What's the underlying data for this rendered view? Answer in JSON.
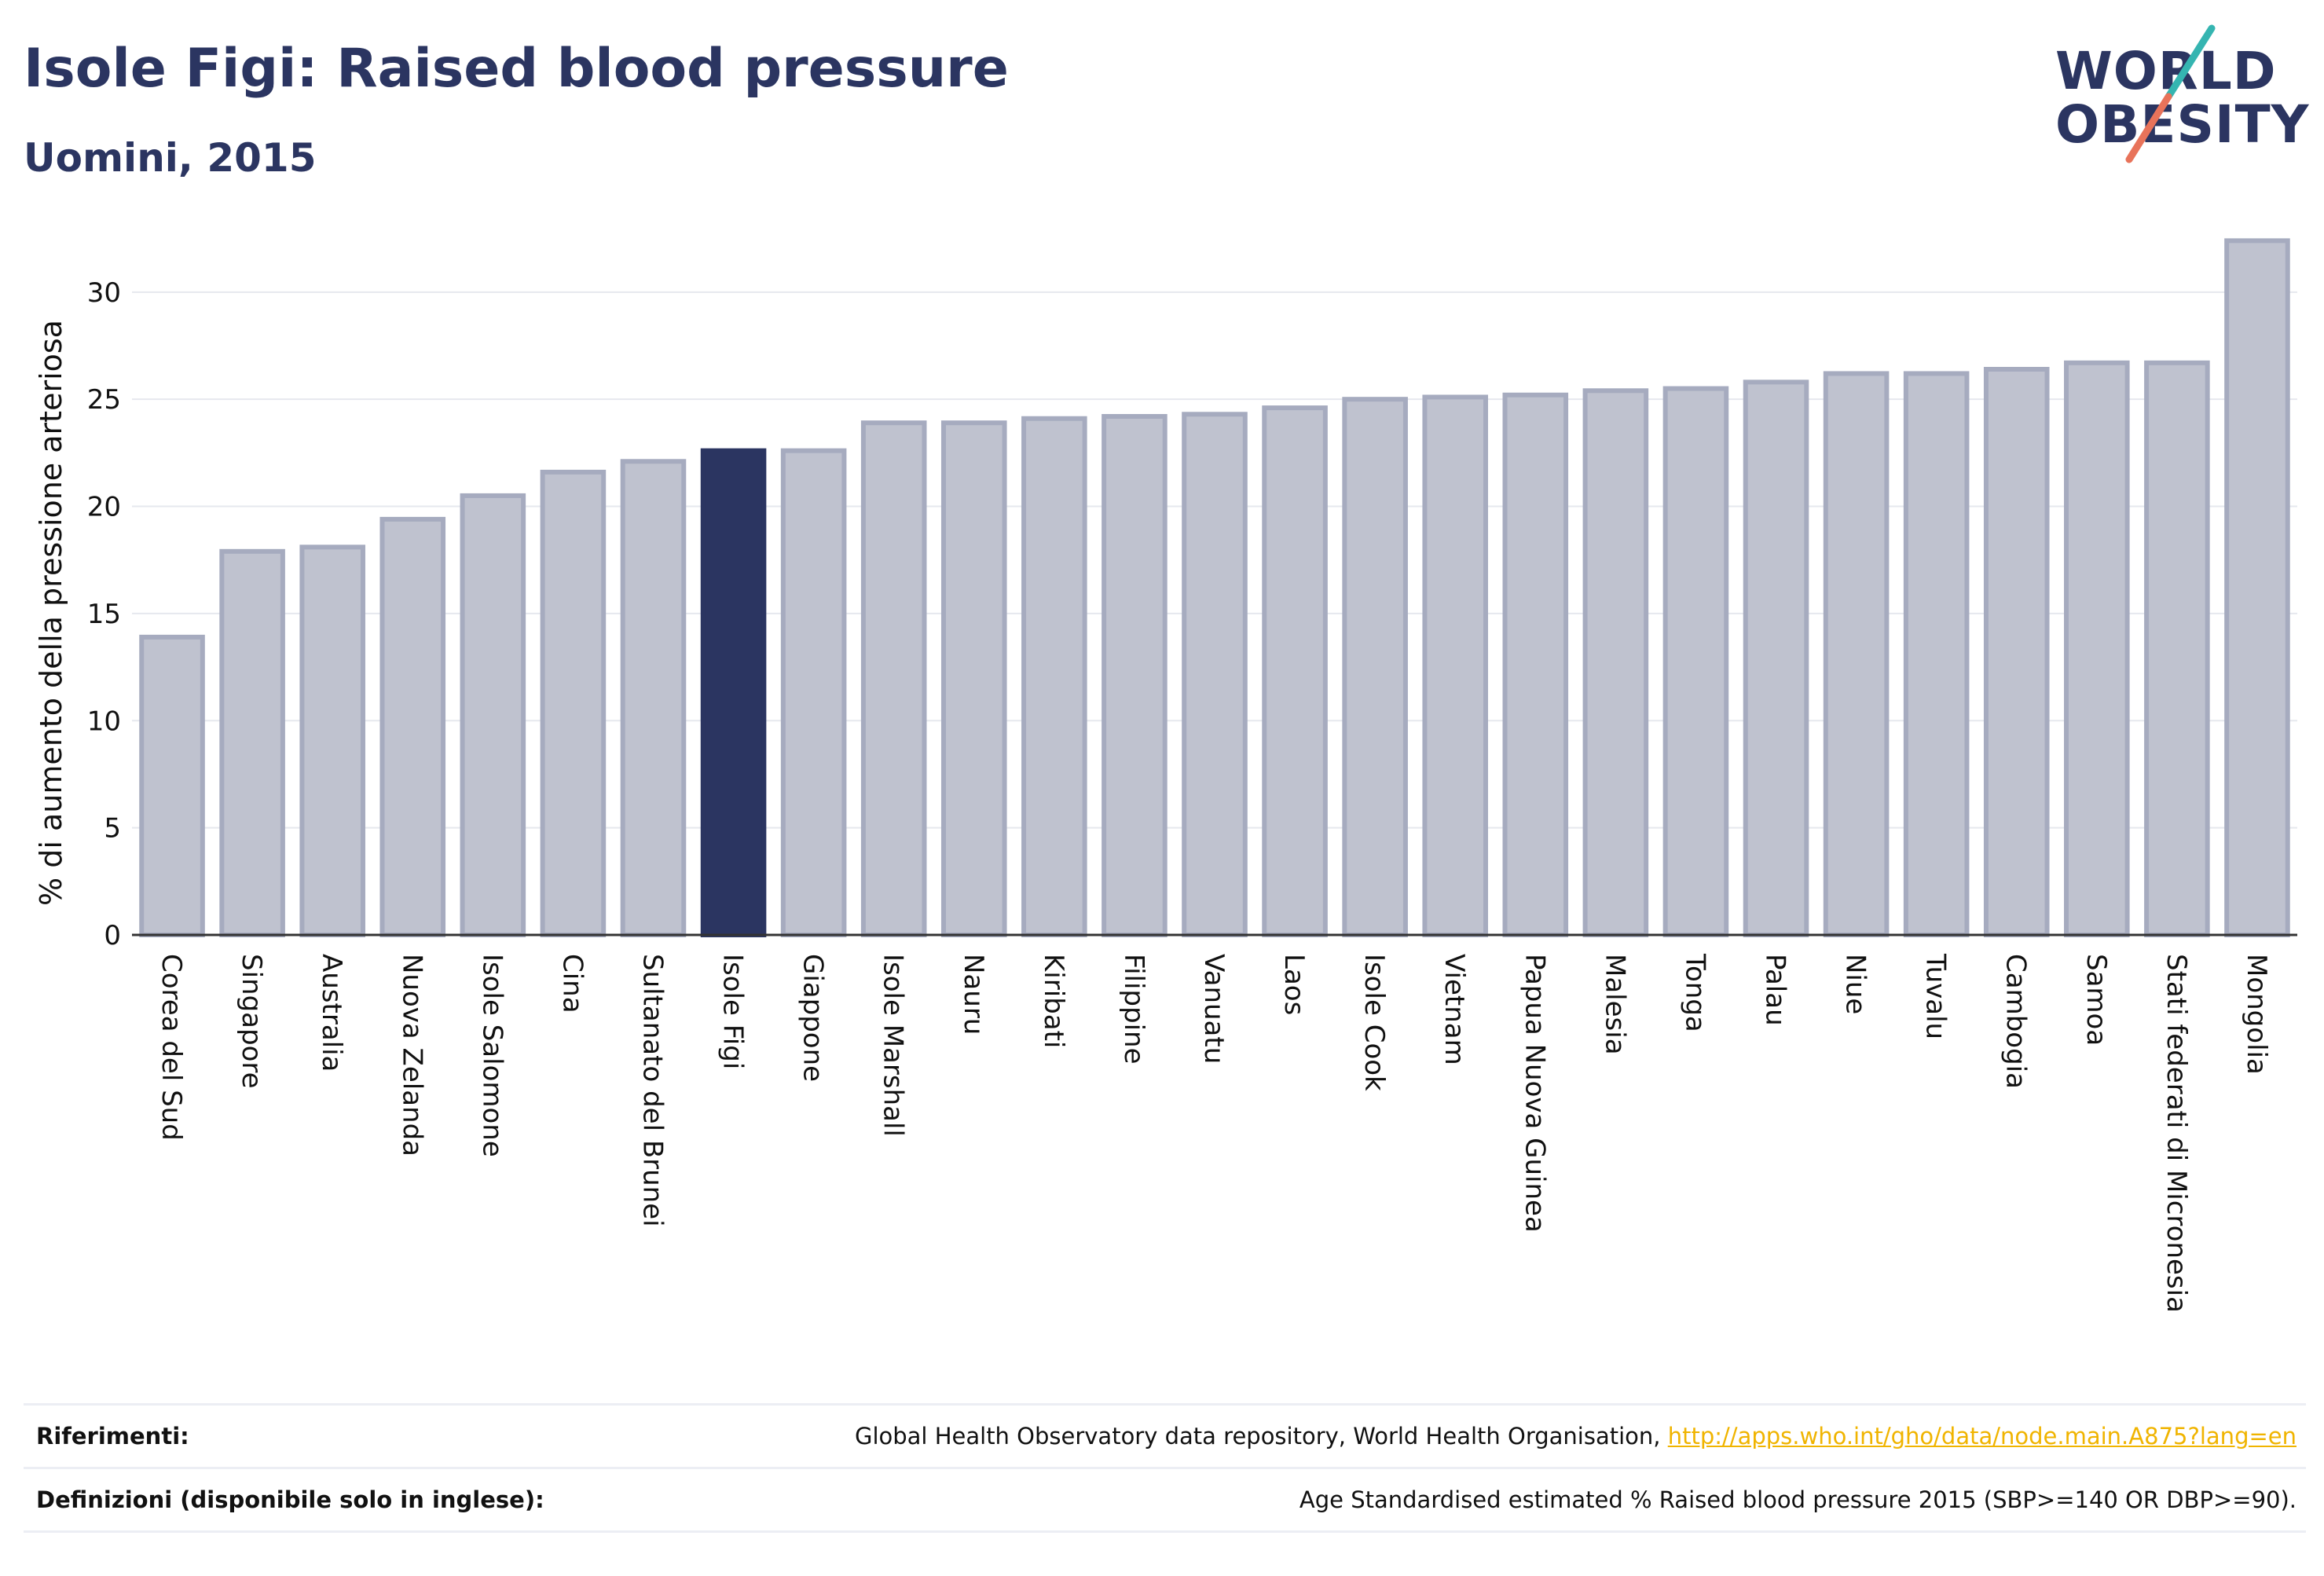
{
  "title": "Isole Figi: Raised blood pressure",
  "subtitle": "Uomini, 2015",
  "logo": {
    "line1": "WORLD",
    "line2": "OBESITY"
  },
  "chart_data": {
    "type": "bar",
    "ylabel": "% di aumento della pressione arteriosa",
    "xlabel": "",
    "ylim": [
      0,
      33
    ],
    "yticks": [
      0,
      5,
      10,
      15,
      20,
      25,
      30
    ],
    "grid": true,
    "highlight": "Isole Figi",
    "categories": [
      "Corea del Sud",
      "Singapore",
      "Australia",
      "Nuova Zelanda",
      "Isole Salomone",
      "Cina",
      "Sultanato del Brunei",
      "Isole Figi",
      "Giappone",
      "Isole Marshall",
      "Nauru",
      "Kiribati",
      "Filippine",
      "Vanuatu",
      "Laos",
      "Isole Cook",
      "Vietnam",
      "Papua Nuova Guinea",
      "Malesia",
      "Tonga",
      "Palau",
      "Niue",
      "Tuvalu",
      "Cambogia",
      "Samoa",
      "Stati federati di Micronesia",
      "Mongolia"
    ],
    "values": [
      13.9,
      17.9,
      18.1,
      19.4,
      20.5,
      21.6,
      22.1,
      22.6,
      22.6,
      23.9,
      23.9,
      24.1,
      24.2,
      24.3,
      24.6,
      25.0,
      25.1,
      25.2,
      25.4,
      25.5,
      25.8,
      26.2,
      26.2,
      26.4,
      26.7,
      26.7,
      32.4
    ]
  },
  "colors": {
    "bar": "#bfc2cf",
    "bar_border": "#a6abbf",
    "highlight": "#2b3561",
    "title": "#2b3561",
    "grid": "#e6e8ee",
    "link": "#f0b400",
    "logo_teal": "#35b5b1",
    "logo_coral": "#e8735a"
  },
  "footer": {
    "references_label": "Riferimenti:",
    "references_text": "Global Health Observatory data repository, World Health Organisation,",
    "references_link": "http://apps.who.int/gho/data/node.main.A875?lang=en",
    "definitions_label": "Definizioni (disponibile solo in inglese):",
    "definitions_text": "Age Standardised estimated % Raised blood pressure 2015 (SBP>=140 OR DBP>=90)."
  }
}
